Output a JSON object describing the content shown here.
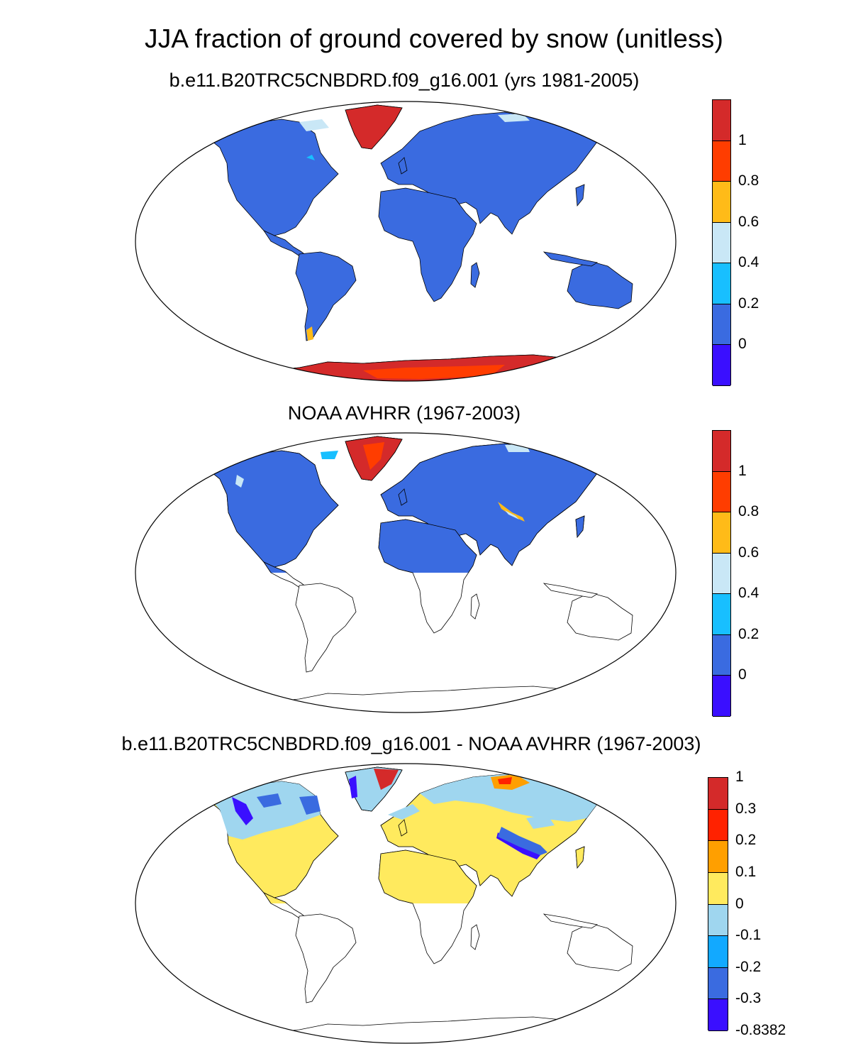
{
  "title": "JJA fraction of ground covered by snow (unitless)",
  "panels": [
    {
      "id": "model",
      "title": "b.e11.B20TRC5CNBDRD.f09_g16.001 (yrs 1981-2005)",
      "colorbar": {
        "colors": [
          "#d42a2a",
          "#ff3d00",
          "#ffbb18",
          "#c9e7f6",
          "#18bfff",
          "#3a6be0",
          "#3a0fff"
        ],
        "labels": [
          "1",
          "0.8",
          "0.6",
          "0.4",
          "0.2",
          "0"
        ]
      }
    },
    {
      "id": "obs",
      "title": "NOAA AVHRR (1967-2003)",
      "colorbar": {
        "colors": [
          "#d42a2a",
          "#ff3d00",
          "#ffbb18",
          "#c9e7f6",
          "#18bfff",
          "#3a6be0",
          "#3a0fff"
        ],
        "labels": [
          "1",
          "0.8",
          "0.6",
          "0.4",
          "0.2",
          "0"
        ]
      }
    },
    {
      "id": "diff",
      "title": "b.e11.B20TRC5CNBDRD.f09_g16.001 - NOAA AVHRR (1967-2003)",
      "colorbar": {
        "colors": [
          "#d42a2a",
          "#ff2200",
          "#ff9f00",
          "#ffea5e",
          "#9fd6ef",
          "#12a9ff",
          "#3a6be0",
          "#3a0fff"
        ],
        "labels": [
          "1",
          "0.3",
          "0.2",
          "0.1",
          "0",
          "-0.1",
          "-0.2",
          "-0.3",
          "-0.8382"
        ]
      }
    }
  ]
}
